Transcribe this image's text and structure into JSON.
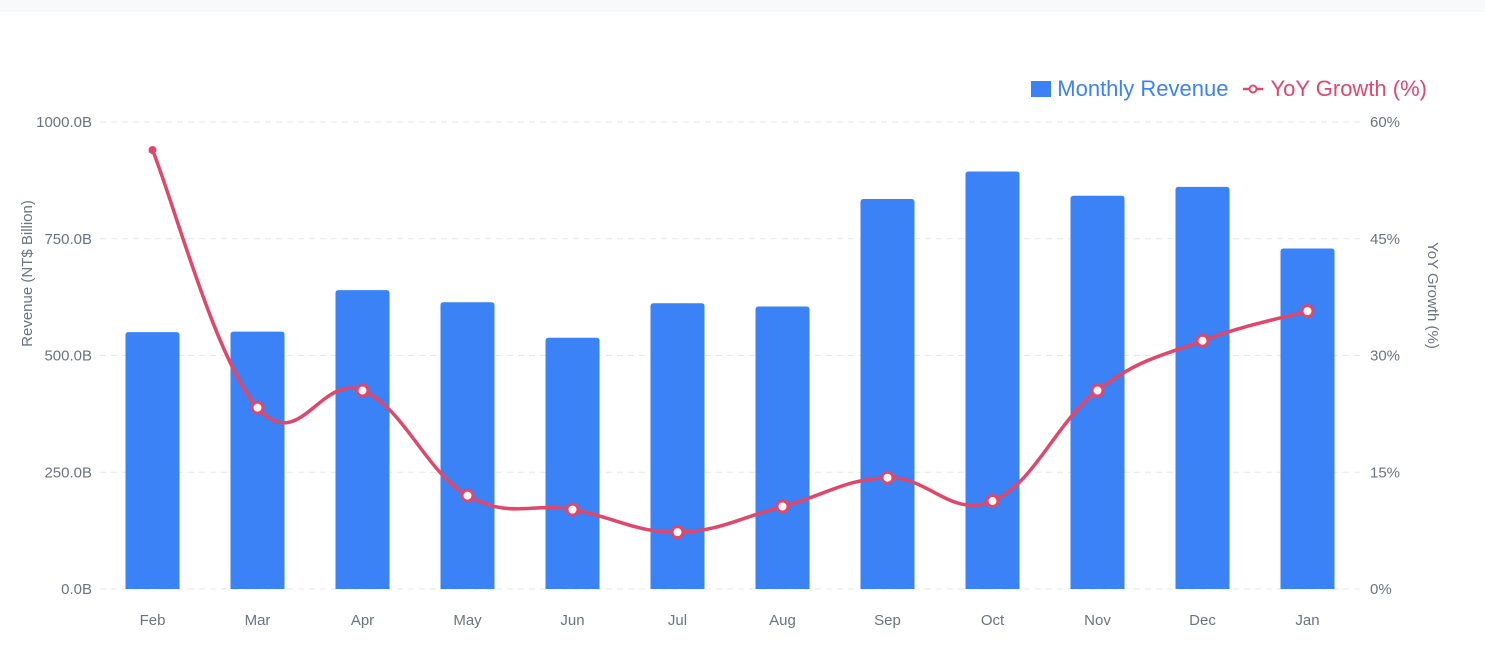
{
  "colors": {
    "bar": "#3b82f6",
    "line": "#e0476b",
    "grid": "#e5e7eb",
    "text": "#6b7280"
  },
  "legend": {
    "revenue_label": "Monthly Revenue",
    "growth_label": "YoY Growth (%)"
  },
  "chart_data": {
    "type": "bar",
    "categories": [
      "Feb",
      "Mar",
      "Apr",
      "May",
      "Jun",
      "Jul",
      "Aug",
      "Sep",
      "Oct",
      "Nov",
      "Dec",
      "Jan"
    ],
    "series": [
      {
        "name": "Monthly Revenue",
        "type": "bar",
        "axis": "left",
        "values": [
          550,
          551,
          640,
          614,
          538,
          612,
          605,
          835,
          894,
          842,
          861,
          729
        ]
      },
      {
        "name": "YoY Growth (%)",
        "type": "line",
        "axis": "right",
        "values": [
          56.4,
          23.3,
          25.5,
          12.0,
          10.2,
          7.3,
          10.6,
          14.3,
          11.3,
          25.5,
          31.9,
          35.7
        ]
      }
    ],
    "ylabel": "Revenue (NT$ Billion)",
    "y2label": "YoY Growth (%)",
    "ylim": [
      0,
      1000
    ],
    "y2lim": [
      0,
      60
    ],
    "yticks": [
      "0.0B",
      "250.0B",
      "500.0B",
      "750.0B",
      "1000.0B"
    ],
    "y2ticks": [
      "0%",
      "15%",
      "30%",
      "45%",
      "60%"
    ],
    "grid": true,
    "legend_position": "top-right"
  }
}
